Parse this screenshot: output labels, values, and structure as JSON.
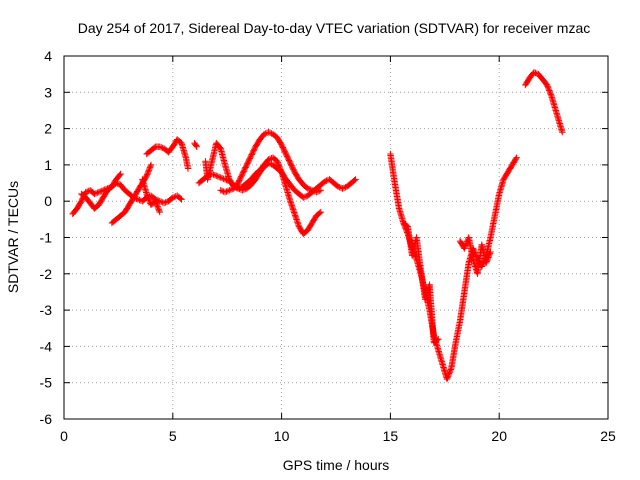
{
  "chart_data": {
    "type": "scatter",
    "title": "Day 254 of 2017, Sidereal Day-to-day VTEC variation (SDTVAR) for receiver mzac",
    "xlabel": "GPS time / hours",
    "ylabel": "SDTVAR / TECUs",
    "xlim": [
      0,
      25
    ],
    "ylim": [
      -6,
      4
    ],
    "x_ticks": [
      "0",
      "5",
      "10",
      "15",
      "20",
      "25"
    ],
    "y_ticks": [
      "-6",
      "-5",
      "-4",
      "-3",
      "-2",
      "-1",
      "0",
      "1",
      "2",
      "3",
      "4"
    ],
    "grid": true,
    "marker": "+",
    "series": [
      {
        "name": "SDTVAR",
        "color": "#ff0000",
        "segments": [
          {
            "x": [
              0.4,
              0.6,
              0.8,
              1.0,
              1.2,
              1.4,
              1.6,
              1.8,
              2.0,
              2.2,
              2.4,
              2.6,
              2.8,
              3.0,
              3.2,
              3.4,
              3.6,
              3.8,
              4.0,
              4.2,
              4.4,
              4.6,
              4.8,
              5.0,
              5.2,
              5.4
            ],
            "y": [
              -0.35,
              -0.2,
              0.0,
              0.25,
              0.3,
              0.2,
              0.25,
              0.3,
              0.35,
              0.4,
              0.5,
              0.45,
              0.3,
              0.2,
              0.1,
              0.05,
              0.0,
              0.1,
              0.15,
              0.05,
              0.0,
              -0.05,
              0.0,
              0.1,
              0.15,
              0.05
            ]
          },
          {
            "x": [
              0.8,
              1.0,
              1.2,
              1.4,
              1.6,
              1.8,
              2.0,
              2.2,
              2.4,
              2.6
            ],
            "y": [
              0.2,
              0.1,
              -0.05,
              -0.2,
              -0.1,
              0.1,
              0.3,
              0.4,
              0.6,
              0.75
            ]
          },
          {
            "x": [
              2.2,
              2.4,
              2.6,
              2.8,
              3.0,
              3.2,
              3.4,
              3.6,
              3.8,
              4.0
            ],
            "y": [
              -0.6,
              -0.5,
              -0.4,
              -0.3,
              -0.1,
              0.1,
              0.3,
              0.5,
              0.7,
              1.0
            ]
          },
          {
            "x": [
              3.8,
              4.0,
              4.2,
              4.4,
              4.6,
              4.8,
              5.0,
              5.2,
              5.4,
              5.6,
              5.7
            ],
            "y": [
              1.3,
              1.4,
              1.5,
              1.5,
              1.45,
              1.35,
              1.5,
              1.7,
              1.6,
              1.2,
              0.9
            ]
          },
          {
            "x": [
              3.6,
              3.8,
              4.0,
              4.2,
              4.4
            ],
            "y": [
              0.6,
              0.2,
              -0.1,
              0.0,
              -0.3
            ]
          },
          {
            "x": [
              6.2,
              6.4,
              6.6,
              6.8,
              7.0,
              7.2,
              7.4,
              7.6,
              7.8,
              8.0,
              8.2,
              8.4,
              8.6,
              8.8,
              9.0,
              9.2,
              9.4,
              9.6,
              9.8,
              10.0,
              10.2,
              10.4,
              10.6,
              10.8,
              11.0,
              11.2,
              11.4,
              11.6,
              11.8,
              12.0,
              12.2,
              12.4,
              12.6,
              12.8,
              13.0,
              13.2,
              13.4
            ],
            "y": [
              0.5,
              0.6,
              0.7,
              0.75,
              0.7,
              0.65,
              0.6,
              0.55,
              0.45,
              0.35,
              0.3,
              0.35,
              0.45,
              0.6,
              0.8,
              0.95,
              1.05,
              1.0,
              0.9,
              0.8,
              0.6,
              0.45,
              0.3,
              0.2,
              0.1,
              0.15,
              0.25,
              0.35,
              0.45,
              0.55,
              0.6,
              0.5,
              0.4,
              0.35,
              0.4,
              0.5,
              0.6
            ]
          },
          {
            "x": [
              6.0,
              6.1
            ],
            "y": [
              1.6,
              1.5
            ]
          },
          {
            "x": [
              6.5,
              6.6,
              6.8,
              7.0,
              7.2,
              7.4,
              7.6,
              7.8,
              8.0,
              8.2,
              8.4,
              8.6,
              8.8,
              9.0,
              9.2,
              9.4,
              9.6,
              9.8,
              10.0,
              10.2,
              10.4,
              10.6,
              10.8,
              11.0,
              11.2,
              11.4,
              11.6,
              11.8
            ],
            "y": [
              1.1,
              0.6,
              1.1,
              1.6,
              1.45,
              1.0,
              0.6,
              0.4,
              0.35,
              0.4,
              0.5,
              0.6,
              0.75,
              0.85,
              1.0,
              1.15,
              1.2,
              1.1,
              0.8,
              0.4,
              0.0,
              -0.35,
              -0.7,
              -0.9,
              -0.8,
              -0.6,
              -0.4,
              -0.3
            ]
          },
          {
            "x": [
              7.2,
              7.4,
              7.6,
              7.8,
              8.0,
              8.2,
              8.4,
              8.6,
              8.8,
              9.0,
              9.2,
              9.4,
              9.6,
              9.8,
              10.0,
              10.2,
              10.4,
              10.6,
              10.8,
              11.0,
              11.2,
              11.4,
              11.6,
              11.8
            ],
            "y": [
              0.3,
              0.25,
              0.3,
              0.35,
              0.5,
              0.75,
              1.0,
              1.25,
              1.5,
              1.7,
              1.85,
              1.9,
              1.85,
              1.75,
              1.55,
              1.3,
              1.05,
              0.8,
              0.6,
              0.45,
              0.35,
              0.3,
              0.25,
              0.3
            ]
          },
          {
            "x": [
              15.0,
              15.2,
              15.4,
              15.6,
              15.8,
              16.0,
              16.2,
              16.4,
              16.6,
              16.8,
              17.0,
              17.2,
              17.4,
              17.6,
              17.8,
              18.0,
              18.2,
              18.4,
              18.6,
              18.8,
              19.0,
              19.2,
              19.4,
              19.6,
              19.8,
              20.0,
              20.2,
              20.4,
              20.6,
              20.8
            ],
            "y": [
              1.3,
              0.5,
              -0.2,
              -0.6,
              -0.9,
              -1.3,
              -1.6,
              -2.0,
              -2.5,
              -3.0,
              -3.7,
              -4.1,
              -4.5,
              -4.9,
              -4.6,
              -3.9,
              -3.3,
              -2.5,
              -1.7,
              -1.3,
              -1.6,
              -1.8,
              -1.5,
              -1.0,
              -0.4,
              0.2,
              0.6,
              0.8,
              1.0,
              1.2
            ]
          },
          {
            "x": [
              15.6,
              15.8,
              16.0,
              16.2,
              16.4,
              16.6,
              16.8,
              17.0,
              17.2
            ],
            "y": [
              -0.6,
              -0.7,
              -1.5,
              -1.0,
              -1.9,
              -2.7,
              -2.3,
              -3.9,
              -3.8
            ]
          },
          {
            "x": [
              18.2,
              18.4,
              18.6,
              18.8,
              19.0,
              19.2,
              19.4,
              19.6
            ],
            "y": [
              -1.1,
              -1.3,
              -1.0,
              -1.6,
              -2.0,
              -1.2,
              -1.7,
              -1.4
            ]
          },
          {
            "x": [
              21.2,
              21.4,
              21.6,
              21.8,
              22.0,
              22.2,
              22.4,
              22.6,
              22.8,
              22.9
            ],
            "y": [
              3.2,
              3.4,
              3.55,
              3.5,
              3.35,
              3.2,
              2.9,
              2.5,
              2.1,
              1.9
            ]
          }
        ]
      }
    ]
  }
}
